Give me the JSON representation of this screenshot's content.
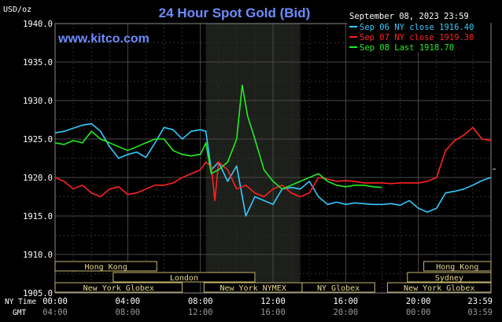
{
  "chart_data": {
    "type": "line",
    "title": "24 Hour Spot Gold (Bid)",
    "watermark": "www.kitco.com",
    "date_text": "September 08, 2023 23:59",
    "y_unit": "USD/oz",
    "ylim": [
      1905.0,
      1940.0
    ],
    "y_ticks": [
      "1940.0",
      "1935.0",
      "1930.0",
      "1925.0",
      "1920.0",
      "1915.0",
      "1910.0",
      "1905.0"
    ],
    "y_tick_values": [
      1940,
      1935,
      1930,
      1925,
      1920,
      1915,
      1910,
      1905
    ],
    "x_ticks_ny": [
      "00:00",
      "04:00",
      "08:00",
      "12:00",
      "16:00",
      "20:00",
      "23:59"
    ],
    "x_ticks_gmt": [
      "04:00",
      "08:00",
      "12:00",
      "16:00",
      "20:00",
      "00:00",
      "03:59"
    ],
    "x_tick_hours": [
      0,
      4,
      8,
      12,
      16,
      20,
      24
    ],
    "ny_time_label": "NY Time",
    "gmt_label": "GMT",
    "grid": true,
    "legend_position": "top-right",
    "nymex_shade_hours": [
      8.3,
      13.5
    ],
    "sessions": [
      {
        "name": "Hong Kong",
        "start": 0.0,
        "end": 5.6
      },
      {
        "name": "London",
        "start": 3.2,
        "end": 11.0
      },
      {
        "name": "New York Globex",
        "start": 0.0,
        "end": 7.0
      },
      {
        "name": "New York NYMEX",
        "start": 8.2,
        "end": 13.6
      },
      {
        "name": "NY Globex",
        "start": 13.6,
        "end": 17.6
      },
      {
        "name": "Hong Kong",
        "start": 20.3,
        "end": 24.0
      },
      {
        "name": "Sydney",
        "start": 19.4,
        "end": 24.0
      },
      {
        "name": "New York Globex",
        "start": 18.3,
        "end": 24.0
      }
    ],
    "series": [
      {
        "name": "Sep 06 NY close 1916.40",
        "color": "#33ccff",
        "x": [
          0,
          0.5,
          1,
          1.5,
          2,
          2.5,
          3,
          3.5,
          4,
          4.5,
          5,
          5.5,
          6,
          6.5,
          7,
          7.5,
          8,
          8.3,
          8.6,
          9,
          9.5,
          10,
          10.5,
          11,
          11.5,
          12,
          12.5,
          13,
          13.5,
          14,
          14.5,
          15,
          15.5,
          16,
          16.5,
          17,
          17.5,
          18,
          18.5,
          19,
          19.5,
          20,
          20.5,
          21,
          21.5,
          22,
          22.5,
          23,
          23.5,
          24
        ],
        "y": [
          1925.8,
          1926.0,
          1926.4,
          1926.8,
          1927.0,
          1926.0,
          1924.0,
          1922.5,
          1923.0,
          1923.3,
          1922.6,
          1924.5,
          1926.5,
          1926.2,
          1925.0,
          1926.0,
          1926.2,
          1926.0,
          1921.0,
          1922.0,
          1919.5,
          1921.5,
          1915.0,
          1917.5,
          1917.0,
          1916.5,
          1918.5,
          1918.7,
          1918.5,
          1919.5,
          1917.5,
          1916.5,
          1916.8,
          1916.5,
          1916.7,
          1916.6,
          1916.5,
          1916.5,
          1916.6,
          1916.4,
          1917.0,
          1916.0,
          1915.5,
          1916.0,
          1918.0,
          1918.2,
          1918.5,
          1919.0,
          1919.6,
          1920.0
        ]
      },
      {
        "name": "Sep 07 NY close 1919.30",
        "color": "#ff2222",
        "x": [
          0,
          0.5,
          1,
          1.5,
          2,
          2.5,
          3,
          3.5,
          4,
          4.5,
          5,
          5.5,
          6,
          6.5,
          7,
          7.5,
          8,
          8.3,
          8.6,
          8.8,
          9,
          9.5,
          10,
          10.5,
          11,
          11.5,
          12,
          12.5,
          13,
          13.5,
          14,
          14.5,
          15,
          15.5,
          16,
          16.5,
          17,
          17.5,
          18,
          18.5,
          19,
          19.5,
          20,
          20.5,
          21,
          21.5,
          22,
          22.5,
          23,
          23.5,
          24
        ],
        "y": [
          1920.0,
          1919.5,
          1918.5,
          1919.0,
          1918.0,
          1917.5,
          1918.5,
          1918.8,
          1917.8,
          1918.0,
          1918.5,
          1919.0,
          1919.0,
          1919.3,
          1920.0,
          1920.5,
          1921.0,
          1922.0,
          1921.5,
          1917.0,
          1922.0,
          1921.0,
          1918.5,
          1919.0,
          1918.0,
          1917.5,
          1918.5,
          1919.0,
          1918.0,
          1917.5,
          1918.0,
          1920.0,
          1919.8,
          1919.5,
          1919.6,
          1919.5,
          1919.3,
          1919.3,
          1919.3,
          1919.2,
          1919.3,
          1919.3,
          1919.3,
          1919.5,
          1920.0,
          1923.5,
          1924.8,
          1925.5,
          1926.5,
          1925.0,
          1924.8
        ]
      },
      {
        "name": "Sep 08 Last 1918.70",
        "color": "#22ee22",
        "x": [
          0,
          0.5,
          1,
          1.5,
          2,
          2.5,
          3,
          3.5,
          4,
          4.5,
          5,
          5.5,
          6,
          6.5,
          7,
          7.5,
          8,
          8.3,
          8.6,
          9,
          9.5,
          10,
          10.3,
          10.6,
          11,
          11.5,
          12,
          12.5,
          13,
          13.5,
          14,
          14.5,
          15,
          15.5,
          16,
          16.5,
          17,
          17.5,
          18
        ],
        "y": [
          1924.5,
          1924.3,
          1924.8,
          1924.5,
          1926.0,
          1925.0,
          1924.5,
          1924.0,
          1923.5,
          1924.0,
          1924.5,
          1925.0,
          1925.0,
          1923.5,
          1923.0,
          1922.8,
          1923.0,
          1924.5,
          1920.5,
          1921.0,
          1922.0,
          1925.0,
          1932.0,
          1928.0,
          1925.0,
          1921.0,
          1919.5,
          1918.5,
          1919.0,
          1919.5,
          1920.0,
          1920.5,
          1919.5,
          1919.0,
          1918.8,
          1919.0,
          1919.0,
          1918.8,
          1918.7
        ]
      }
    ]
  }
}
